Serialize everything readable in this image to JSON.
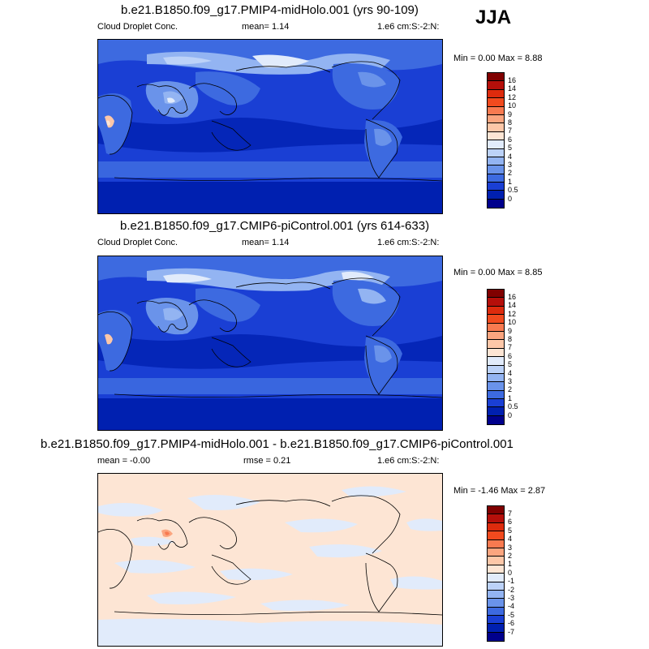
{
  "season": "JJA",
  "panels": [
    {
      "title": "b.e21.B1850.f09_g17.PMIP4-midHolo.001 (yrs 90-109)",
      "left_label": "Cloud Droplet Conc.",
      "center_label": "mean=   1.14",
      "right_label": "1.e6 cm:S:-2:N:",
      "minmax": "Min =   0.00 Max =   8.88",
      "background_color": "#1a3fd4",
      "colorbar": {
        "labels": [
          "16",
          "14",
          "12",
          "10",
          "9",
          "8",
          "7",
          "6",
          "5",
          "4",
          "3",
          "2",
          "1",
          "0.5",
          "0"
        ],
        "colors": [
          "#800000",
          "#b50f0a",
          "#dd2b0d",
          "#f14a1e",
          "#f87a50",
          "#fba57f",
          "#fdc7a8",
          "#fde5d4",
          "#e1ebfb",
          "#bcd2f8",
          "#93b4f2",
          "#6a93ea",
          "#3d6ae0",
          "#1a3fd4",
          "#0020b0",
          "#00008c"
        ]
      }
    },
    {
      "title": "b.e21.B1850.f09_g17.CMIP6-piControl.001 (yrs 614-633)",
      "left_label": "Cloud Droplet Conc.",
      "center_label": "mean=   1.14",
      "right_label": "1.e6 cm:S:-2:N:",
      "minmax": "Min =   0.00 Max =   8.85",
      "background_color": "#1a3fd4",
      "colorbar": {
        "labels": [
          "16",
          "14",
          "12",
          "10",
          "9",
          "8",
          "7",
          "6",
          "5",
          "4",
          "3",
          "2",
          "1",
          "0.5",
          "0"
        ],
        "colors": [
          "#800000",
          "#b50f0a",
          "#dd2b0d",
          "#f14a1e",
          "#f87a50",
          "#fba57f",
          "#fdc7a8",
          "#fde5d4",
          "#e1ebfb",
          "#bcd2f8",
          "#93b4f2",
          "#6a93ea",
          "#3d6ae0",
          "#1a3fd4",
          "#0020b0",
          "#00008c"
        ]
      }
    },
    {
      "title": "b.e21.B1850.f09_g17.PMIP4-midHolo.001 - b.e21.B1850.f09_g17.CMIP6-piControl.001",
      "left_label": "mean =  -0.00",
      "center_label": "rmse =   0.21",
      "right_label": "1.e6 cm:S:-2:N:",
      "minmax": "Min =  -1.46 Max =   2.87",
      "background_color": "#fde5d4",
      "colorbar": {
        "labels": [
          "7",
          "6",
          "5",
          "4",
          "3",
          "2",
          "1",
          "0",
          "-1",
          "-2",
          "-3",
          "-4",
          "-5",
          "-6",
          "-7"
        ],
        "colors": [
          "#800000",
          "#b50f0a",
          "#dd2b0d",
          "#f14a1e",
          "#f87a50",
          "#fba57f",
          "#fdc7a8",
          "#fde5d4",
          "#e1ebfb",
          "#bcd2f8",
          "#93b4f2",
          "#6a93ea",
          "#3d6ae0",
          "#1a3fd4",
          "#0020b0",
          "#00008c"
        ]
      }
    }
  ]
}
